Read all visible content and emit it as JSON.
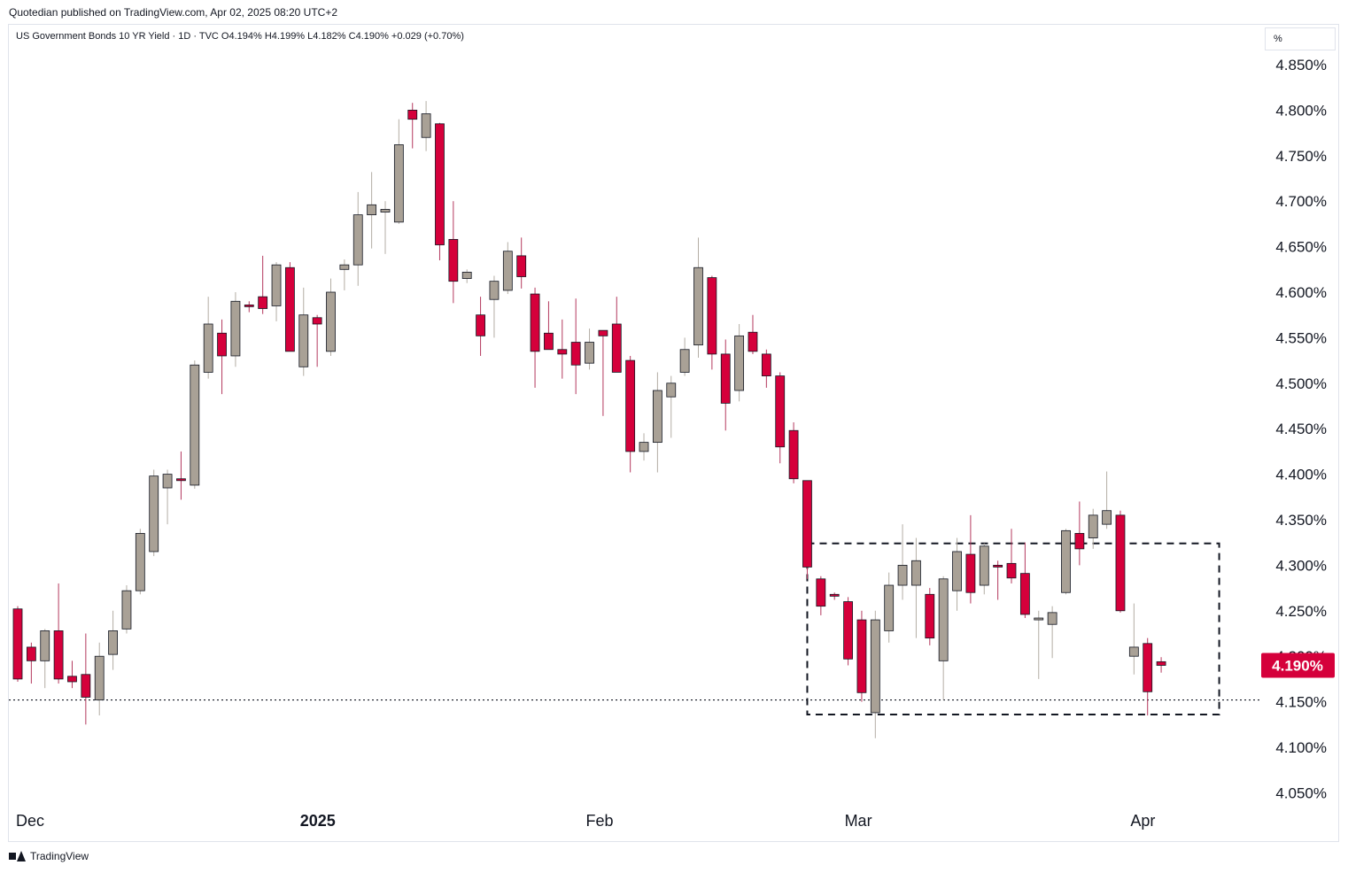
{
  "header": {
    "publisher": "Quotedian published on TradingView.com, Apr 02, 2025 08:20 UTC+2"
  },
  "legend": {
    "text": "US Government Bonds 10 YR Yield · 1D · TVC  O4.194%  H4.199%  L4.182%  C4.190%  +0.029 (+0.70%)"
  },
  "price_scale": {
    "unit": "%"
  },
  "footer": {
    "brand": "TradingView",
    "logo_icon": "tradingview-logo-icon"
  },
  "colors": {
    "up": "#a9a196",
    "down": "#d5003b",
    "wick_up": "#b3ada4",
    "wick_down": "#b4385e",
    "border": "#131722"
  },
  "chart_data": {
    "type": "candlestick",
    "y_ticks": [
      "4.850%",
      "4.800%",
      "4.750%",
      "4.700%",
      "4.650%",
      "4.600%",
      "4.550%",
      "4.500%",
      "4.450%",
      "4.400%",
      "4.350%",
      "4.300%",
      "4.250%",
      "4.200%",
      "4.150%",
      "4.100%",
      "4.050%"
    ],
    "x_labels": [
      {
        "label": "Dec",
        "index": 0
      },
      {
        "label": "2025",
        "index": 21
      },
      {
        "label": "Feb",
        "index": 42
      },
      {
        "label": "Mar",
        "index": 61
      },
      {
        "label": "Apr",
        "index": 82
      }
    ],
    "last_price": {
      "label": "4.190%",
      "value": 4.19
    },
    "support_level": 4.152,
    "range_box": {
      "from_index": 58,
      "to_index": 88,
      "top": 4.324,
      "bottom": 4.136
    },
    "candles": [
      {
        "o": 4.252,
        "h": 4.255,
        "l": 4.172,
        "c": 4.175
      },
      {
        "o": 4.21,
        "h": 4.215,
        "l": 4.17,
        "c": 4.195
      },
      {
        "o": 4.195,
        "h": 4.23,
        "l": 4.165,
        "c": 4.228
      },
      {
        "o": 4.228,
        "h": 4.28,
        "l": 4.17,
        "c": 4.175
      },
      {
        "o": 4.178,
        "h": 4.195,
        "l": 4.165,
        "c": 4.172
      },
      {
        "o": 4.18,
        "h": 4.225,
        "l": 4.125,
        "c": 4.155
      },
      {
        "o": 4.152,
        "h": 4.215,
        "l": 4.135,
        "c": 4.2
      },
      {
        "o": 4.202,
        "h": 4.25,
        "l": 4.185,
        "c": 4.228
      },
      {
        "o": 4.23,
        "h": 4.278,
        "l": 4.225,
        "c": 4.272
      },
      {
        "o": 4.272,
        "h": 4.34,
        "l": 4.268,
        "c": 4.335
      },
      {
        "o": 4.315,
        "h": 4.405,
        "l": 4.31,
        "c": 4.398
      },
      {
        "o": 4.385,
        "h": 4.405,
        "l": 4.345,
        "c": 4.4
      },
      {
        "o": 4.395,
        "h": 4.425,
        "l": 4.372,
        "c": 4.393
      },
      {
        "o": 4.388,
        "h": 4.525,
        "l": 4.384,
        "c": 4.52
      },
      {
        "o": 4.512,
        "h": 4.595,
        "l": 4.505,
        "c": 4.565
      },
      {
        "o": 4.555,
        "h": 4.57,
        "l": 4.488,
        "c": 4.53
      },
      {
        "o": 4.53,
        "h": 4.6,
        "l": 4.518,
        "c": 4.59
      },
      {
        "o": 4.586,
        "h": 4.59,
        "l": 4.578,
        "c": 4.585
      },
      {
        "o": 4.595,
        "h": 4.64,
        "l": 4.576,
        "c": 4.582
      },
      {
        "o": 4.585,
        "h": 4.633,
        "l": 4.568,
        "c": 4.63
      },
      {
        "o": 4.627,
        "h": 4.633,
        "l": 4.535,
        "c": 4.535
      },
      {
        "o": 4.518,
        "h": 4.605,
        "l": 4.508,
        "c": 4.575
      },
      {
        "o": 4.572,
        "h": 4.575,
        "l": 4.518,
        "c": 4.565
      },
      {
        "o": 4.535,
        "h": 4.615,
        "l": 4.53,
        "c": 4.6
      },
      {
        "o": 4.625,
        "h": 4.636,
        "l": 4.602,
        "c": 4.63
      },
      {
        "o": 4.63,
        "h": 4.71,
        "l": 4.607,
        "c": 4.685
      },
      {
        "o": 4.685,
        "h": 4.732,
        "l": 4.648,
        "c": 4.696
      },
      {
        "o": 4.688,
        "h": 4.7,
        "l": 4.642,
        "c": 4.691
      },
      {
        "o": 4.677,
        "h": 4.79,
        "l": 4.675,
        "c": 4.762
      },
      {
        "o": 4.8,
        "h": 4.808,
        "l": 4.758,
        "c": 4.79
      },
      {
        "o": 4.77,
        "h": 4.81,
        "l": 4.755,
        "c": 4.796
      },
      {
        "o": 4.785,
        "h": 4.786,
        "l": 4.635,
        "c": 4.652
      },
      {
        "o": 4.658,
        "h": 4.7,
        "l": 4.588,
        "c": 4.612
      },
      {
        "o": 4.615,
        "h": 4.625,
        "l": 4.61,
        "c": 4.622
      },
      {
        "o": 4.575,
        "h": 4.595,
        "l": 4.53,
        "c": 4.552
      },
      {
        "o": 4.592,
        "h": 4.618,
        "l": 4.55,
        "c": 4.612
      },
      {
        "o": 4.602,
        "h": 4.655,
        "l": 4.598,
        "c": 4.645
      },
      {
        "o": 4.64,
        "h": 4.66,
        "l": 4.604,
        "c": 4.617
      },
      {
        "o": 4.598,
        "h": 4.605,
        "l": 4.495,
        "c": 4.535
      },
      {
        "o": 4.555,
        "h": 4.59,
        "l": 4.54,
        "c": 4.537
      },
      {
        "o": 4.537,
        "h": 4.57,
        "l": 4.505,
        "c": 4.532
      },
      {
        "o": 4.545,
        "h": 4.593,
        "l": 4.488,
        "c": 4.52
      },
      {
        "o": 4.522,
        "h": 4.56,
        "l": 4.515,
        "c": 4.545
      },
      {
        "o": 4.558,
        "h": 4.558,
        "l": 4.464,
        "c": 4.552
      },
      {
        "o": 4.565,
        "h": 4.595,
        "l": 4.515,
        "c": 4.512
      },
      {
        "o": 4.525,
        "h": 4.53,
        "l": 4.402,
        "c": 4.425
      },
      {
        "o": 4.425,
        "h": 4.445,
        "l": 4.415,
        "c": 4.435
      },
      {
        "o": 4.435,
        "h": 4.512,
        "l": 4.402,
        "c": 4.492
      },
      {
        "o": 4.485,
        "h": 4.508,
        "l": 4.44,
        "c": 4.5
      },
      {
        "o": 4.512,
        "h": 4.55,
        "l": 4.508,
        "c": 4.537
      },
      {
        "o": 4.542,
        "h": 4.66,
        "l": 4.528,
        "c": 4.627
      },
      {
        "o": 4.616,
        "h": 4.618,
        "l": 4.515,
        "c": 4.532
      },
      {
        "o": 4.532,
        "h": 4.548,
        "l": 4.448,
        "c": 4.478
      },
      {
        "o": 4.492,
        "h": 4.565,
        "l": 4.48,
        "c": 4.552
      },
      {
        "o": 4.556,
        "h": 4.575,
        "l": 4.532,
        "c": 4.535
      },
      {
        "o": 4.532,
        "h": 4.537,
        "l": 4.495,
        "c": 4.508
      },
      {
        "o": 4.508,
        "h": 4.512,
        "l": 4.412,
        "c": 4.43
      },
      {
        "o": 4.448,
        "h": 4.457,
        "l": 4.39,
        "c": 4.395
      },
      {
        "o": 4.393,
        "h": 4.393,
        "l": 4.285,
        "c": 4.298
      },
      {
        "o": 4.285,
        "h": 4.288,
        "l": 4.245,
        "c": 4.255
      },
      {
        "o": 4.268,
        "h": 4.27,
        "l": 4.262,
        "c": 4.266
      },
      {
        "o": 4.26,
        "h": 4.265,
        "l": 4.19,
        "c": 4.197
      },
      {
        "o": 4.24,
        "h": 4.25,
        "l": 4.15,
        "c": 4.16
      },
      {
        "o": 4.138,
        "h": 4.25,
        "l": 4.11,
        "c": 4.24
      },
      {
        "o": 4.228,
        "h": 4.292,
        "l": 4.215,
        "c": 4.278
      },
      {
        "o": 4.278,
        "h": 4.345,
        "l": 4.262,
        "c": 4.3
      },
      {
        "o": 4.278,
        "h": 4.33,
        "l": 4.22,
        "c": 4.305
      },
      {
        "o": 4.268,
        "h": 4.275,
        "l": 4.212,
        "c": 4.22
      },
      {
        "o": 4.195,
        "h": 4.288,
        "l": 4.152,
        "c": 4.285
      },
      {
        "o": 4.272,
        "h": 4.33,
        "l": 4.25,
        "c": 4.315
      },
      {
        "o": 4.312,
        "h": 4.355,
        "l": 4.258,
        "c": 4.27
      },
      {
        "o": 4.278,
        "h": 4.324,
        "l": 4.268,
        "c": 4.321
      },
      {
        "o": 4.3,
        "h": 4.305,
        "l": 4.262,
        "c": 4.298
      },
      {
        "o": 4.302,
        "h": 4.34,
        "l": 4.28,
        "c": 4.286
      },
      {
        "o": 4.291,
        "h": 4.325,
        "l": 4.242,
        "c": 4.246
      },
      {
        "o": 4.24,
        "h": 4.25,
        "l": 4.175,
        "c": 4.242
      },
      {
        "o": 4.235,
        "h": 4.255,
        "l": 4.198,
        "c": 4.248
      },
      {
        "o": 4.27,
        "h": 4.34,
        "l": 4.268,
        "c": 4.338
      },
      {
        "o": 4.335,
        "h": 4.37,
        "l": 4.3,
        "c": 4.318
      },
      {
        "o": 4.33,
        "h": 4.362,
        "l": 4.318,
        "c": 4.355
      },
      {
        "o": 4.345,
        "h": 4.403,
        "l": 4.34,
        "c": 4.36
      },
      {
        "o": 4.355,
        "h": 4.36,
        "l": 4.248,
        "c": 4.25
      },
      {
        "o": 4.2,
        "h": 4.258,
        "l": 4.18,
        "c": 4.21
      },
      {
        "o": 4.214,
        "h": 4.22,
        "l": 4.135,
        "c": 4.161
      },
      {
        "o": 4.194,
        "h": 4.199,
        "l": 4.182,
        "c": 4.19
      }
    ]
  }
}
